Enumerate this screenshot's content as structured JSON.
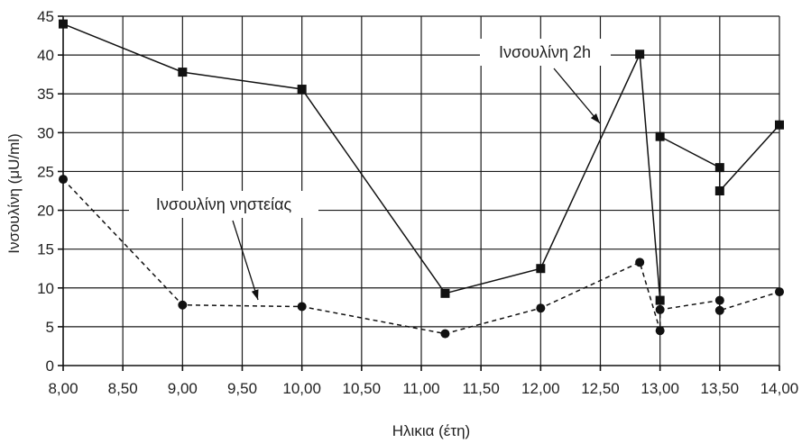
{
  "chart_data": {
    "type": "line",
    "xlabel": "Ηλικια (έτη)",
    "ylabel": "Ινσουλίνη (μU/ml)",
    "x_tick_labels": [
      "8,00",
      "8,50",
      "9,00",
      "9,50",
      "10,00",
      "10,50",
      "11,00",
      "11,50",
      "12,00",
      "12,50",
      "13,00",
      "13,50",
      "14,00"
    ],
    "y_tick_labels": [
      "0",
      "5",
      "10",
      "15",
      "20",
      "25",
      "30",
      "35",
      "40",
      "45"
    ],
    "xlim": [
      8.0,
      14.0
    ],
    "ylim": [
      0,
      45
    ],
    "grid": true,
    "annotations": [
      {
        "text": "Ινσουλίνη 2h",
        "series": 0
      },
      {
        "text": "Ινσουλίνη νηστείας",
        "series": 1
      }
    ],
    "series": [
      {
        "name": "Ινσουλίνη 2h",
        "marker": "square",
        "linestyle": "solid",
        "x": [
          8.0,
          9.0,
          10.0,
          11.2,
          12.0,
          12.83,
          13.0,
          13.0,
          13.5,
          13.5,
          14.0
        ],
        "y": [
          44,
          37.8,
          35.6,
          9.3,
          12.5,
          40.1,
          8.4,
          29.5,
          25.5,
          22.5,
          31.0
        ]
      },
      {
        "name": "Ινσουλίνη νηστείας",
        "marker": "circle",
        "linestyle": "dashed",
        "x": [
          8.0,
          9.0,
          10.0,
          11.2,
          12.0,
          12.83,
          13.0,
          13.0,
          13.5,
          13.5,
          14.0
        ],
        "y": [
          24,
          7.8,
          7.6,
          4.1,
          7.4,
          13.3,
          4.5,
          7.2,
          8.4,
          7.1,
          9.5
        ]
      }
    ]
  }
}
